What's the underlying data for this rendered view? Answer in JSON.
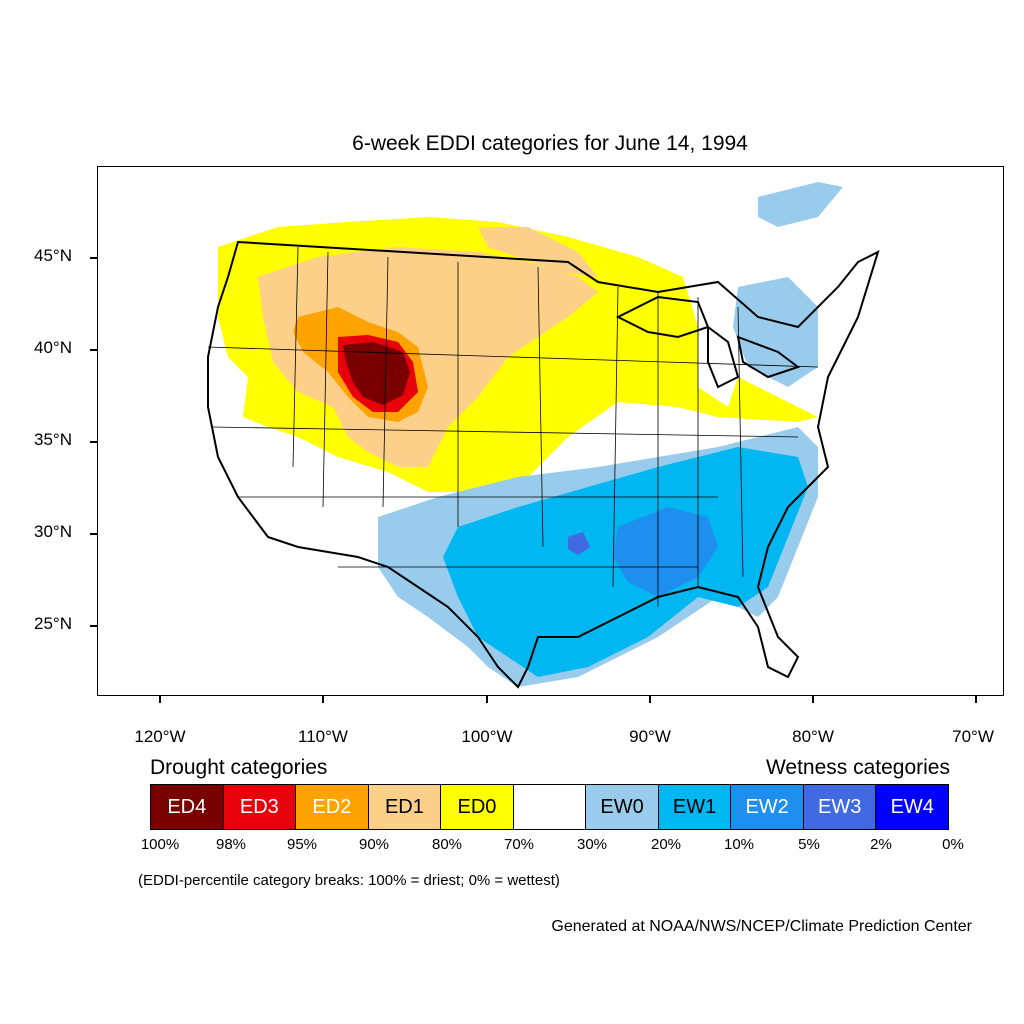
{
  "title": "6-week EDDI categories for June 14, 1994",
  "axes": {
    "lat_ticks": [
      {
        "label": "45°N",
        "value": 45
      },
      {
        "label": "40°N",
        "value": 40
      },
      {
        "label": "35°N",
        "value": 35
      },
      {
        "label": "30°N",
        "value": 30
      },
      {
        "label": "25°N",
        "value": 25
      }
    ],
    "lon_ticks": [
      {
        "label": "120°W",
        "value": -120
      },
      {
        "label": "110°W",
        "value": -110
      },
      {
        "label": "100°W",
        "value": -100
      },
      {
        "label": "90°W",
        "value": -90
      },
      {
        "label": "80°W",
        "value": -80
      },
      {
        "label": "70°W",
        "value": -70
      }
    ]
  },
  "legend": {
    "drought_heading": "Drought categories",
    "wetness_heading": "Wetness categories",
    "categories": [
      {
        "label": "ED4",
        "color": "#7a0000",
        "text_color": "#ffffff"
      },
      {
        "label": "ED3",
        "color": "#e8000b",
        "text_color": "#ffffff"
      },
      {
        "label": "ED2",
        "color": "#ffa300",
        "text_color": "#ffffff"
      },
      {
        "label": "ED1",
        "color": "#fdd08a",
        "text_color": "#000000"
      },
      {
        "label": "ED0",
        "color": "#ffff00",
        "text_color": "#000000"
      },
      {
        "label": "",
        "color": "#ffffff",
        "text_color": "#000000"
      },
      {
        "label": "EW0",
        "color": "#99ccec",
        "text_color": "#000000"
      },
      {
        "label": "EW1",
        "color": "#00b7f1",
        "text_color": "#000000"
      },
      {
        "label": "EW2",
        "color": "#1e8fee",
        "text_color": "#ffffff"
      },
      {
        "label": "EW3",
        "color": "#4169e1",
        "text_color": "#ffffff"
      },
      {
        "label": "EW4",
        "color": "#0000ff",
        "text_color": "#ffffff"
      }
    ],
    "breaks": [
      "100%",
      "98%",
      "95%",
      "90%",
      "80%",
      "70%",
      "30%",
      "20%",
      "10%",
      "5%",
      "2%",
      "0%"
    ]
  },
  "note": "(EDDI-percentile category breaks: 100% = driest; 0% = wettest)",
  "credit": "Generated at NOAA/NWS/NCEP/Climate Prediction Center"
}
